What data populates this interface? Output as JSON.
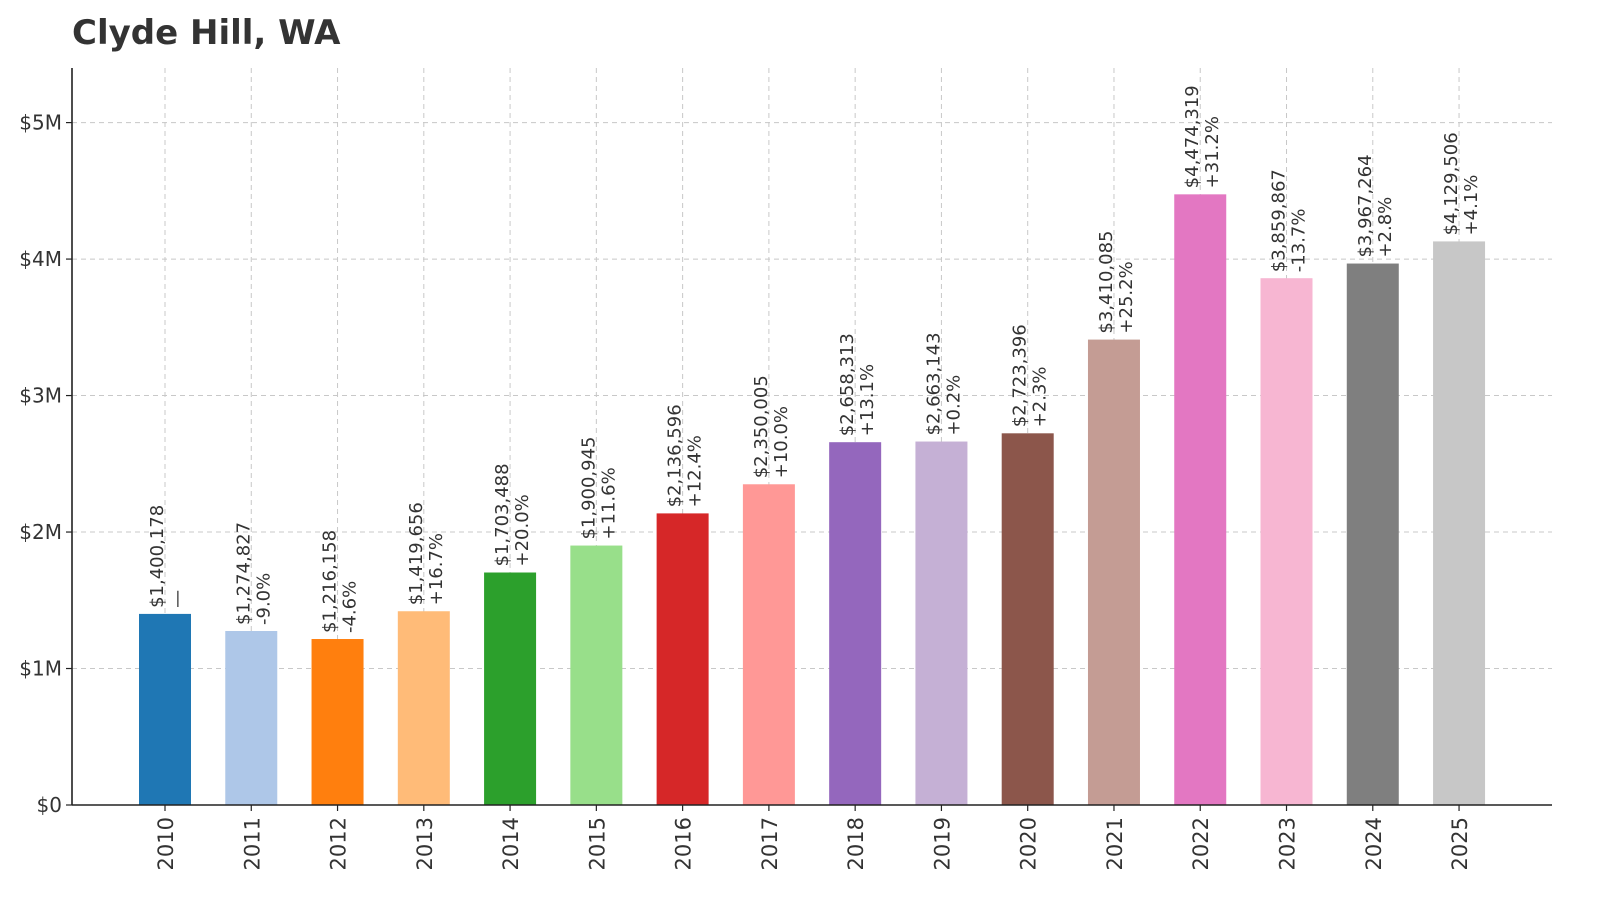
{
  "chart_data": {
    "type": "bar",
    "title": "Clyde Hill, WA",
    "xlabel": "",
    "ylabel": "",
    "ylim": [
      0,
      5400000
    ],
    "yticks": [
      {
        "value": 0,
        "label": "$0"
      },
      {
        "value": 1000000,
        "label": "$1M"
      },
      {
        "value": 2000000,
        "label": "$2M"
      },
      {
        "value": 3000000,
        "label": "$3M"
      },
      {
        "value": 4000000,
        "label": "$4M"
      },
      {
        "value": 5000000,
        "label": "$5M"
      }
    ],
    "grid": true,
    "categories": [
      "2010",
      "2011",
      "2012",
      "2013",
      "2014",
      "2015",
      "2016",
      "2017",
      "2018",
      "2019",
      "2020",
      "2021",
      "2022",
      "2023",
      "2024",
      "2025"
    ],
    "values": [
      1400178,
      1274827,
      1216158,
      1419656,
      1703488,
      1900945,
      2136596,
      2350005,
      2658313,
      2663143,
      2723396,
      3410085,
      4474319,
      3859867,
      3967264,
      4129506
    ],
    "value_labels": [
      "$1,400,178",
      "$1,274,827",
      "$1,216,158",
      "$1,419,656",
      "$1,703,488",
      "$1,900,945",
      "$2,136,596",
      "$2,350,005",
      "$2,658,313",
      "$2,663,143",
      "$2,723,396",
      "$3,410,085",
      "$4,474,319",
      "$3,859,867",
      "$3,967,264",
      "$4,129,506"
    ],
    "change_labels": [
      "—",
      "-9.0%",
      "-4.6%",
      "+16.7%",
      "+20.0%",
      "+11.6%",
      "+12.4%",
      "+10.0%",
      "+13.1%",
      "+0.2%",
      "+2.3%",
      "+25.2%",
      "+31.2%",
      "-13.7%",
      "+2.8%",
      "+4.1%"
    ],
    "colors": [
      "#1f77b4",
      "#aec7e8",
      "#ff7f0e",
      "#ffbb78",
      "#2ca02c",
      "#98df8a",
      "#d62728",
      "#ff9896",
      "#9467bd",
      "#c5b0d5",
      "#8c564b",
      "#c49c94",
      "#e377c2",
      "#f7b6d2",
      "#7f7f7f",
      "#c7c7c7"
    ]
  }
}
